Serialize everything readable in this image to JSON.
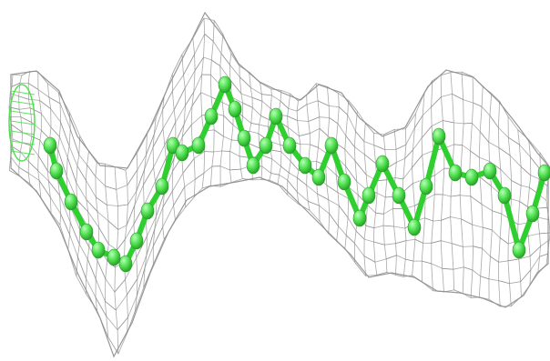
{
  "image": {
    "subject": "molecular-model-in-density-mesh",
    "colors": {
      "background": "#ffffff",
      "mesh": "#8c8c8c",
      "atoms": "#4fe04f",
      "atom_highlight": "#b7ffb7",
      "bonds": "#2fcf2f"
    }
  }
}
